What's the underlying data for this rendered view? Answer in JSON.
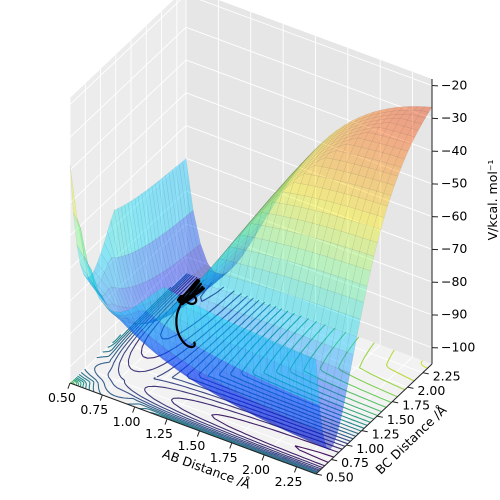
{
  "chart_data": {
    "type": "surface",
    "title": "",
    "xlabel": "AB Distance /Å",
    "ylabel": "BC Distance /Å",
    "zlabel": "V/kcal. mol⁻¹",
    "x_ticks": [
      "0.50",
      "0.75",
      "1.00",
      "1.25",
      "1.50",
      "1.75",
      "2.00",
      "2.25"
    ],
    "y_ticks": [
      "0.50",
      "0.75",
      "1.00",
      "1.25",
      "1.50",
      "1.75",
      "2.00",
      "2.25"
    ],
    "z_ticks": [
      "−100",
      "−90",
      "−80",
      "−70",
      "−60",
      "−50",
      "−40",
      "−30",
      "−20"
    ],
    "xlim": [
      0.5,
      2.4
    ],
    "ylim": [
      0.5,
      2.4
    ],
    "zlim": [
      -105,
      -18
    ],
    "grid": true,
    "surface_colormap": "jet",
    "contour_colormap": "viridis",
    "trajectory_color": "#000000",
    "series": [
      {
        "kind": "surface"
      },
      {
        "kind": "contour-projection"
      },
      {
        "kind": "trajectory"
      }
    ]
  }
}
